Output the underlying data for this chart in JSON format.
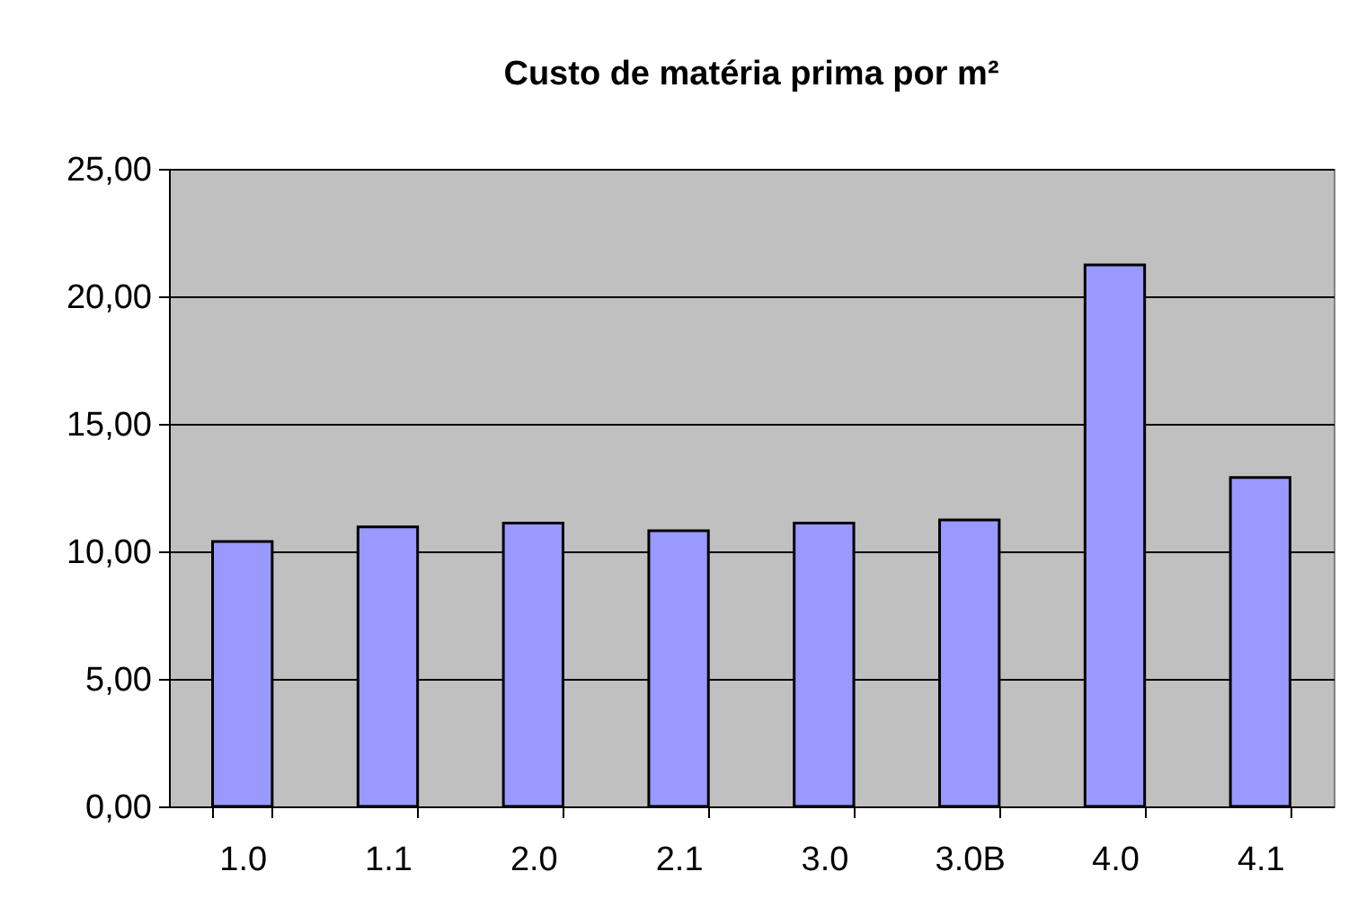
{
  "chart_data": {
    "type": "bar",
    "title": "Custo de matéria prima por m²",
    "categories": [
      "1.0",
      "1.1",
      "2.0",
      "2.1",
      "3.0",
      "3.0B",
      "4.0",
      "4.1"
    ],
    "values": [
      10.39,
      10.96,
      11.11,
      10.81,
      11.11,
      11.23,
      21.23,
      12.9
    ],
    "color": "#9999ff",
    "ylim": [
      0,
      25
    ],
    "yticks": [
      {
        "value": 0,
        "label": "0,00"
      },
      {
        "value": 5,
        "label": "5,00"
      },
      {
        "value": 10,
        "label": "10,00"
      },
      {
        "value": 15,
        "label": "15,00"
      },
      {
        "value": 20,
        "label": "20,00"
      },
      {
        "value": 25,
        "label": "25,00"
      }
    ],
    "grid": "y"
  }
}
